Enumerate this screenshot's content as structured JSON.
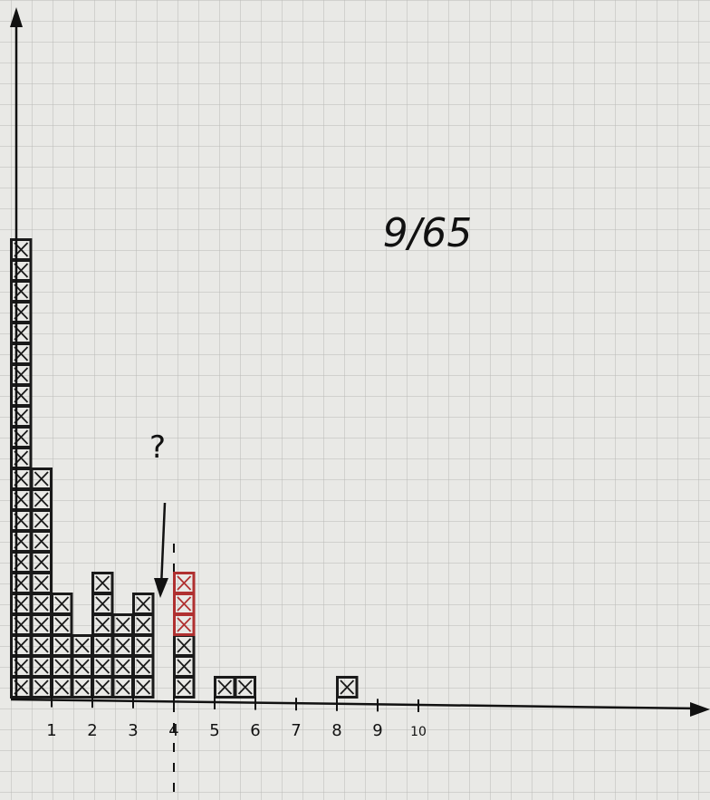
{
  "chart_data": {
    "type": "histogram",
    "annotations": [
      "9/65",
      "?"
    ],
    "bins": [
      0,
      0.5,
      1,
      1.5,
      2,
      2.5,
      3,
      3.5,
      4,
      4.5,
      5,
      5.5,
      6,
      6.5,
      7,
      7.5,
      8,
      8.5
    ],
    "series": [
      {
        "color": "#1a1a1a",
        "values": [
          22,
          11,
          5,
          3,
          6,
          4,
          5,
          0,
          3,
          0,
          1,
          1,
          0,
          0,
          0,
          0,
          1
        ]
      },
      {
        "color": "#b03030",
        "values": [
          0,
          0,
          0,
          0,
          0,
          0,
          0,
          0,
          3,
          0,
          0,
          0,
          0,
          0,
          0,
          0,
          0
        ]
      }
    ],
    "xlim": [
      0,
      17
    ],
    "ylim": [
      0,
      33
    ],
    "xticks": [
      1,
      2,
      3,
      4,
      5,
      6,
      7,
      8,
      9,
      10
    ]
  }
}
